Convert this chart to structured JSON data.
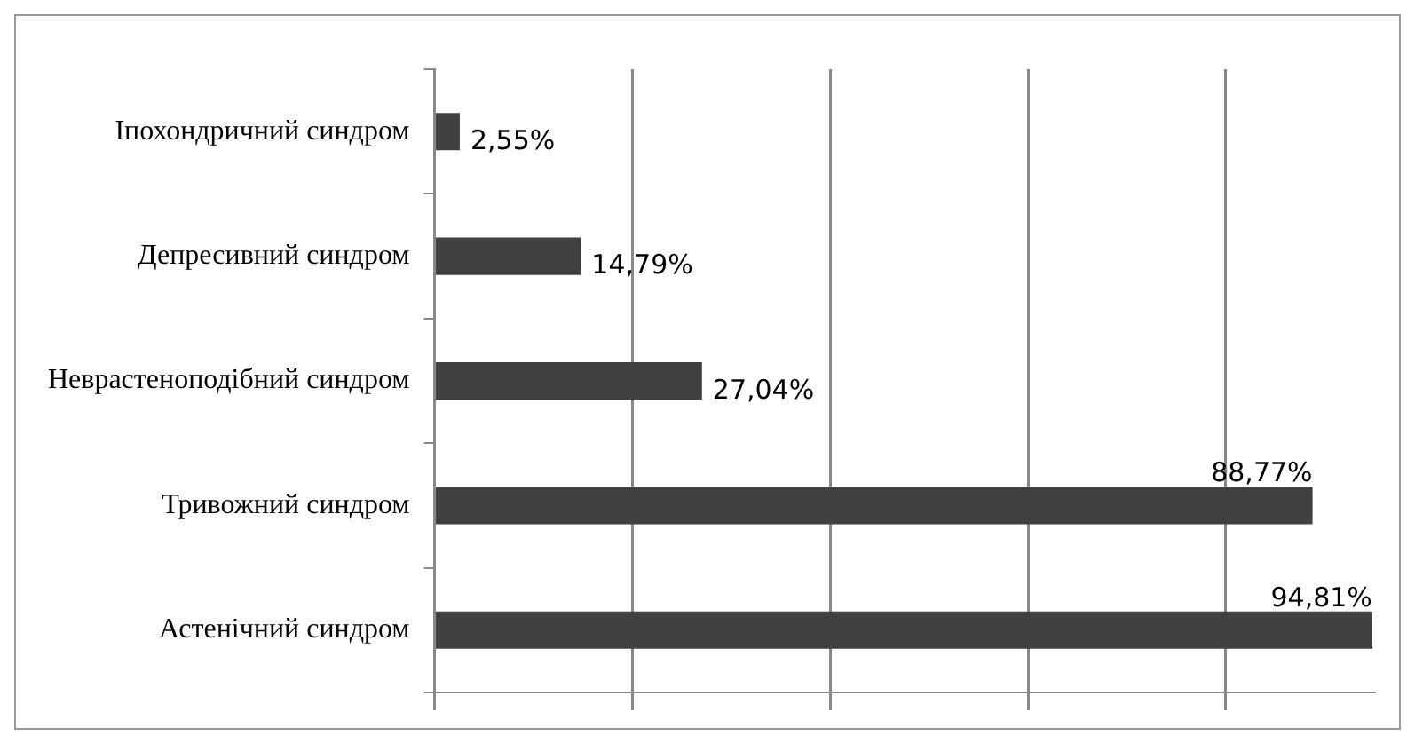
{
  "chart_data": {
    "type": "bar",
    "orientation": "horizontal",
    "categories": [
      "Іпохондричний синдром",
      "Депресивний синдром",
      "Неврастеноподібний синдром",
      "Тривожний синдром",
      "Астенічний синдром"
    ],
    "values": [
      2.55,
      14.79,
      27.04,
      88.77,
      94.81
    ],
    "color": "#404040",
    "value_labels": [
      "2,55%",
      "14,79%",
      "27,04%",
      "88,77%",
      "94,81%"
    ],
    "xlim": [
      0,
      95
    ],
    "xticks": [
      {
        "value": 0,
        "label": null
      },
      {
        "value": 20,
        "label": null
      },
      {
        "value": 40,
        "label": null
      },
      {
        "value": 60,
        "label": null
      },
      {
        "value": 80,
        "label": null
      }
    ],
    "grid": "x",
    "tick_labels": "y",
    "legend": false
  }
}
